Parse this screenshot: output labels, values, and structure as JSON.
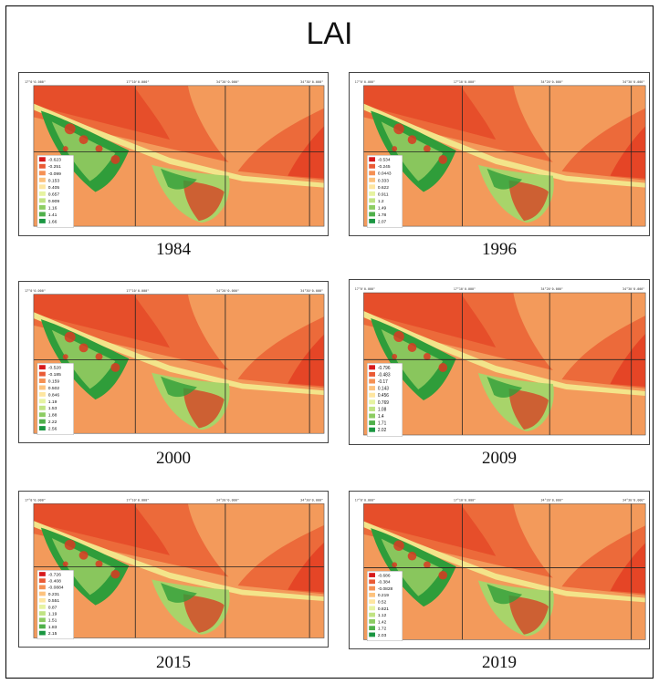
{
  "title": "LAI",
  "colors": {
    "sea_dark": "#e2361e",
    "sea_mid": "#ec6a3a",
    "sea_light": "#f39a5b",
    "land_red": "#d93a22",
    "veg_green": "#2f9d3a",
    "veg_light": "#a8d46a",
    "veg_yellow": "#f3e48a"
  },
  "legend_colors": [
    "#d7191c",
    "#ea5a35",
    "#f59053",
    "#fdc27d",
    "#fee6a0",
    "#e6f3a1",
    "#c0e383",
    "#8ccc62",
    "#4fb04a",
    "#1a9641"
  ],
  "panels": [
    {
      "year": "1984",
      "coords": [
        "17°0'0.000\"",
        "17°10'0.000\"",
        "34°20'0.000\"",
        "34°30'0.000\""
      ],
      "legend": [
        "-0.623",
        "-0.251",
        "-0.099",
        "0.153",
        "0.405",
        "0.657",
        "0.909",
        "1.16",
        "1.41",
        "1.66"
      ]
    },
    {
      "year": "1996",
      "coords": [
        "17°0'0.000\"",
        "17°10'0.000\"",
        "34°20'0.000\"",
        "34°30'0.000\""
      ],
      "legend": [
        "-0.534",
        "-0.245",
        "0.0443",
        "0.333",
        "0.622",
        "0.911",
        "1.2",
        "1.49",
        "1.78",
        "2.07"
      ]
    },
    {
      "year": "2000",
      "coords": [
        "17°0'0.000\"",
        "17°10'0.000\"",
        "34°20'0.000\"",
        "34°30'0.000\""
      ],
      "legend": [
        "-0.528",
        "-0.185",
        "0.159",
        "0.502",
        "0.846",
        "1.19",
        "1.53",
        "1.88",
        "2.22",
        "2.56"
      ]
    },
    {
      "year": "2009",
      "coords": [
        "17°0'0.000\"",
        "17°10'0.000\"",
        "34°20'0.000\"",
        "34°30'0.000\""
      ],
      "legend": [
        "-0.796",
        "-0.483",
        "-0.17",
        "0.143",
        "0.456",
        "0.769",
        "1.08",
        "1.4",
        "1.71",
        "2.02"
      ]
    },
    {
      "year": "2015",
      "coords": [
        "17°0'0.000\"",
        "17°10'0.000\"",
        "34°20'0.000\"",
        "34°30'0.000\""
      ],
      "legend": [
        "-0.726",
        "-0.408",
        "-0.0884",
        "0.231",
        "0.551",
        "0.87",
        "1.19",
        "1.51",
        "1.83",
        "2.15"
      ]
    },
    {
      "year": "2019",
      "coords": [
        "17°0'0.000\"",
        "17°10'0.000\"",
        "34°20'0.000\"",
        "34°30'0.000\""
      ],
      "legend": [
        "-0.686",
        "-0.384",
        "-0.0828",
        "0.219",
        "0.52",
        "0.821",
        "1.12",
        "1.42",
        "1.72",
        "2.03"
      ]
    }
  ]
}
